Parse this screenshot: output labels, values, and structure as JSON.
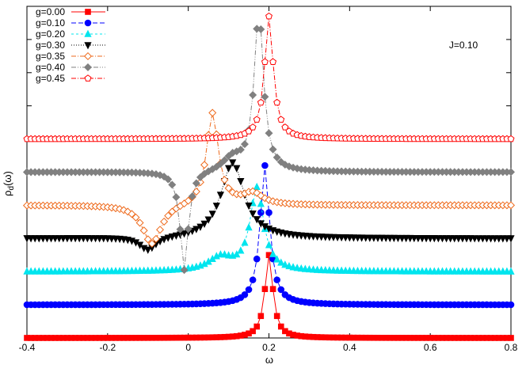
{
  "chart_data": {
    "type": "line",
    "title": "",
    "xlabel": "ω",
    "ylabel": "ρ_d(ω)",
    "ylabel_main": "ρ",
    "ylabel_sub": "d",
    "ylabel_tail": "(ω)",
    "xlim": [
      -0.4,
      0.8
    ],
    "ylim": [
      0,
      1
    ],
    "grid": false,
    "legend_position": "top-left",
    "annotation": "J=0.10",
    "x_ticks": [
      -0.4,
      -0.2,
      0.0,
      0.2,
      0.4,
      0.6,
      0.8
    ],
    "x_tick_labels": [
      "-0.4",
      "-0.2",
      "0",
      "0.2",
      "0.4",
      "0.6",
      "0.8"
    ],
    "y_ticks": [
      0.0,
      0.1,
      0.2,
      0.3,
      0.4,
      0.5,
      0.6,
      0.7,
      0.8,
      0.9
    ],
    "y_tick_labels_shown": false,
    "x_step": 0.01,
    "series": [
      {
        "name": "g=0.00",
        "color": "#ff0000",
        "marker": "filled-square",
        "dash": "solid",
        "baseline": 0.0,
        "features": [
          {
            "center": 0.2,
            "gamma": 0.012,
            "amplitude": 0.25
          }
        ]
      },
      {
        "name": "g=0.10",
        "color": "#0000ff",
        "marker": "filled-circle",
        "dash": "long-dash",
        "baseline": 0.1,
        "features": [
          {
            "center": 0.19,
            "gamma": 0.014,
            "amplitude": 0.42
          }
        ]
      },
      {
        "name": "g=0.20",
        "color": "#00e5ee",
        "marker": "filled-triangle",
        "dash": "short-dash",
        "baseline": 0.2,
        "features": [
          {
            "center": 0.17,
            "gamma": 0.02,
            "amplitude": 0.25
          },
          {
            "center": 0.08,
            "gamma": 0.035,
            "amplitude": 0.04
          }
        ]
      },
      {
        "name": "g=0.30",
        "color": "#000000",
        "marker": "filled-triangle-down",
        "dash": "dotted",
        "baseline": 0.3,
        "features": [
          {
            "center": 0.11,
            "gamma": 0.035,
            "amplitude": 0.23
          },
          {
            "center": -0.1,
            "gamma": 0.025,
            "amplitude": -0.04
          }
        ]
      },
      {
        "name": "g=0.35",
        "color": "#ee6a1c",
        "marker": "open-diamond",
        "dash": "dash-dot",
        "baseline": 0.4,
        "features": [
          {
            "center": 0.06,
            "gamma": 0.018,
            "amplitude": 0.28
          },
          {
            "center": -0.09,
            "gamma": 0.028,
            "amplitude": -0.12
          },
          {
            "center": 0.16,
            "gamma": 0.03,
            "amplitude": 0.035
          }
        ]
      },
      {
        "name": "g=0.40",
        "color": "#808080",
        "marker": "filled-diamond",
        "dash": "dash-dot-dot",
        "baseline": 0.5,
        "features": [
          {
            "center": 0.175,
            "gamma": 0.014,
            "amplitude": 0.48
          },
          {
            "center": 0.11,
            "gamma": 0.03,
            "amplitude": 0.04
          },
          {
            "center": -0.01,
            "gamma": 0.012,
            "amplitude": -0.3
          }
        ]
      },
      {
        "name": "g=0.45",
        "color": "#ff0000",
        "marker": "open-pentagon",
        "dash": "dash-dot",
        "baseline": 0.6,
        "features": [
          {
            "center": 0.2,
            "gamma": 0.013,
            "amplitude": 0.37
          }
        ]
      }
    ]
  }
}
